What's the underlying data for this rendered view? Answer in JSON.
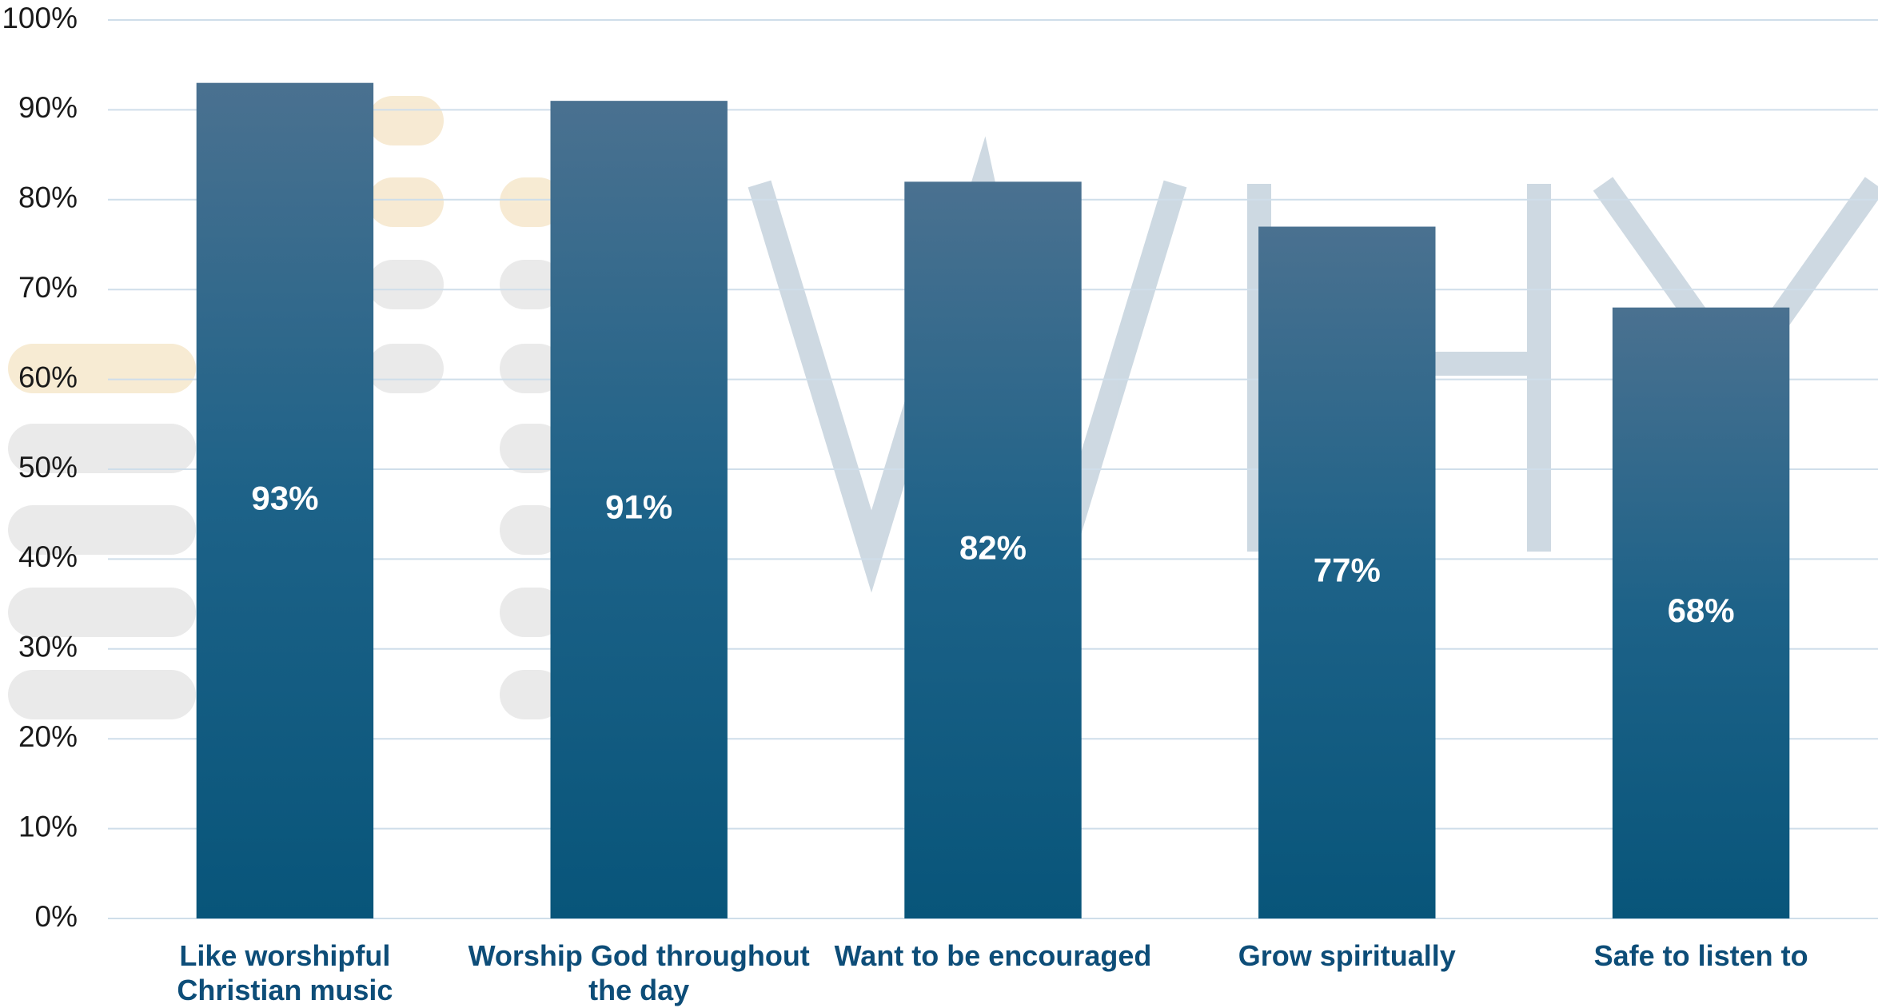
{
  "chart_data": {
    "type": "bar",
    "categories": [
      "Like worshipful Christian music",
      "Worship God throughout the day",
      "Want to be encouraged",
      "Grow spiritually",
      "Safe to listen to"
    ],
    "values": [
      93,
      91,
      82,
      77,
      68
    ],
    "value_labels": [
      "93%",
      "91%",
      "82%",
      "77%",
      "68%"
    ],
    "ylim": [
      0,
      100
    ],
    "yticks": [
      {
        "value": 0,
        "label": "0%"
      },
      {
        "value": 10,
        "label": "10%"
      },
      {
        "value": 20,
        "label": "20%"
      },
      {
        "value": 30,
        "label": "30%"
      },
      {
        "value": 40,
        "label": "40%"
      },
      {
        "value": 50,
        "label": "50%"
      },
      {
        "value": 60,
        "label": "60%"
      },
      {
        "value": 70,
        "label": "70%"
      },
      {
        "value": 80,
        "label": "80%"
      },
      {
        "value": 90,
        "label": "90%"
      },
      {
        "value": 100,
        "label": "100%"
      }
    ],
    "grid": true
  }
}
